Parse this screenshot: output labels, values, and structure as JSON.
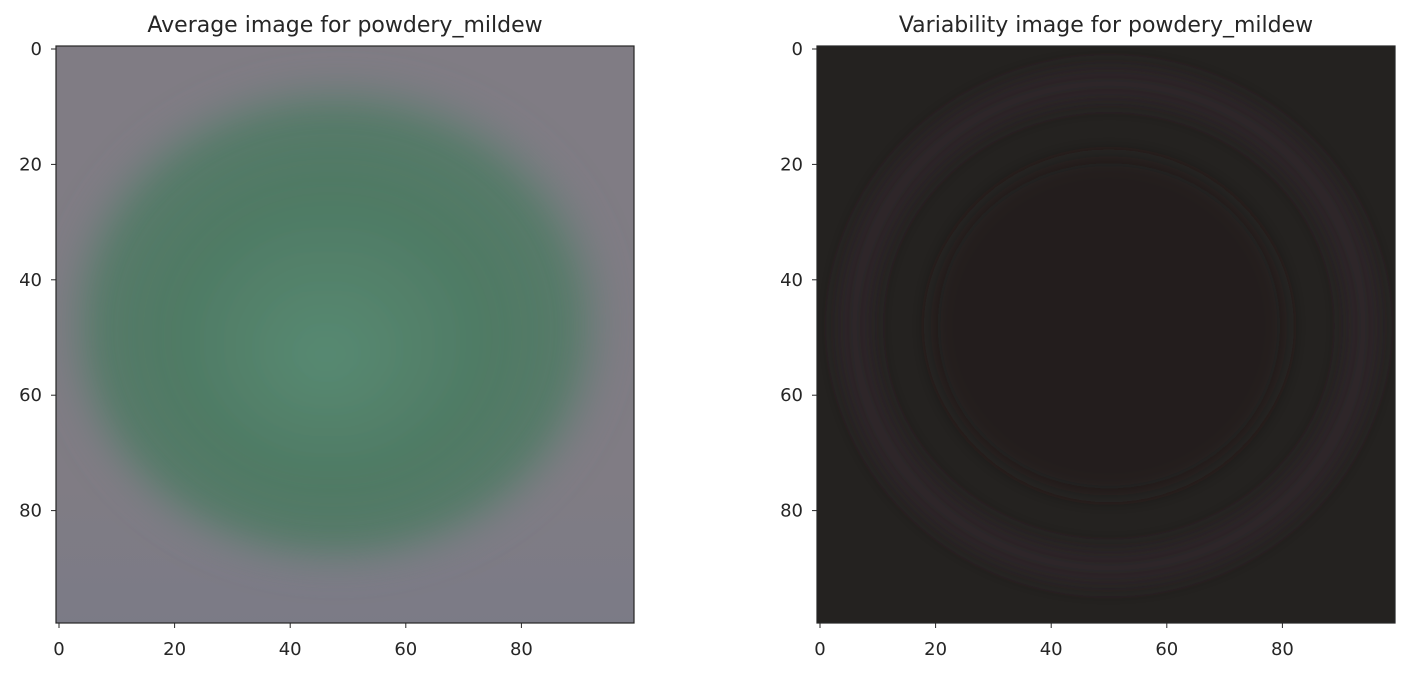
{
  "chart_data": [
    {
      "type": "heatmap",
      "title": "Average image for powdery_mildew",
      "xlabel": "",
      "ylabel": "",
      "xlim": [
        0,
        99
      ],
      "ylim": [
        99,
        0
      ],
      "x_ticks": [
        "0",
        "20",
        "40",
        "60",
        "80"
      ],
      "y_ticks": [
        "0",
        "20",
        "40",
        "60",
        "80"
      ],
      "grid": false,
      "image": {
        "width": 100,
        "height": 100,
        "background_color": "#807c84",
        "bottom_tint_color": "#787a88",
        "blob": {
          "center": [
            49,
            49
          ],
          "radius_x": 46,
          "radius_y": 40,
          "center_color": "#578a72",
          "mid_color": "#4f7a64",
          "edge_color": "#6f8080"
        }
      }
    },
    {
      "type": "heatmap",
      "title": "Variability image for powdery_mildew",
      "xlabel": "",
      "ylabel": "",
      "xlim": [
        0,
        99
      ],
      "ylim": [
        99,
        0
      ],
      "x_ticks": [
        "0",
        "20",
        "40",
        "60",
        "80"
      ],
      "y_ticks": [
        "0",
        "20",
        "40",
        "60",
        "80"
      ],
      "grid": false,
      "image": {
        "width": 100,
        "height": 100,
        "background_color": "#242220",
        "ring": {
          "center": [
            50,
            48
          ],
          "radius_x": 44,
          "radius_y": 42,
          "color": "#302428"
        },
        "inner_color": "#221c1e"
      }
    }
  ]
}
